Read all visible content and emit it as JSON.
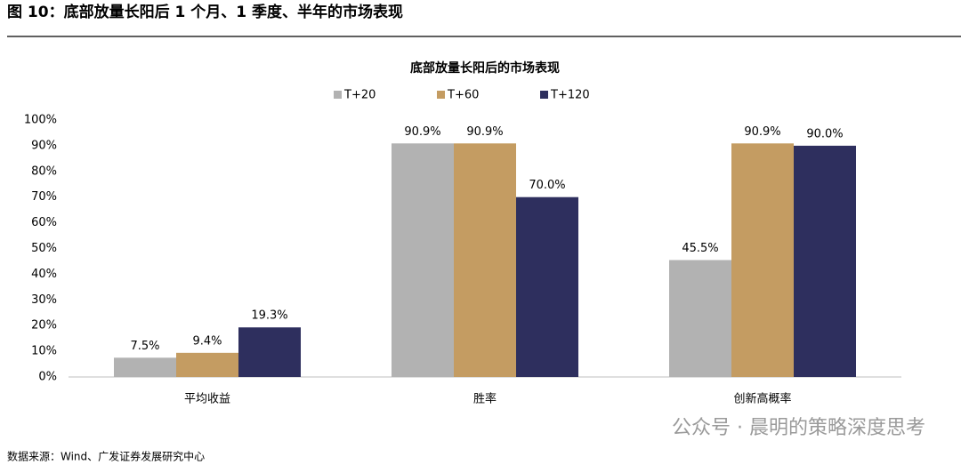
{
  "header": {
    "title": "图 10：底部放量长阳后 1 个月、1 季度、半年的市场表现"
  },
  "chart_data": {
    "type": "bar",
    "title": "底部放量长阳后的市场表现",
    "categories": [
      "平均收益",
      "胜率",
      "创新高概率"
    ],
    "series": [
      {
        "name": "T+20",
        "color": "#b2b2b2",
        "values": [
          7.5,
          90.9,
          45.5
        ],
        "value_labels": [
          "7.5%",
          "90.9%",
          "45.5%"
        ]
      },
      {
        "name": "T+60",
        "color": "#c49c62",
        "values": [
          9.4,
          90.9,
          90.9
        ],
        "value_labels": [
          "9.4%",
          "90.9%",
          "90.9%"
        ]
      },
      {
        "name": "T+120",
        "color": "#2e2f5e",
        "values": [
          19.3,
          70.0,
          90.0
        ],
        "value_labels": [
          "19.3%",
          "70.0%",
          "90.0%"
        ]
      }
    ],
    "ylim": [
      0,
      100
    ],
    "yticks": [
      {
        "value": 0,
        "label": "0%"
      },
      {
        "value": 10,
        "label": "10%"
      },
      {
        "value": 20,
        "label": "20%"
      },
      {
        "value": 30,
        "label": "30%"
      },
      {
        "value": 40,
        "label": "40%"
      },
      {
        "value": 50,
        "label": "50%"
      },
      {
        "value": 60,
        "label": "60%"
      },
      {
        "value": 70,
        "label": "70%"
      },
      {
        "value": 80,
        "label": "80%"
      },
      {
        "value": 90,
        "label": "90%"
      },
      {
        "value": 100,
        "label": "100%"
      }
    ],
    "grid": false,
    "legend": "top"
  },
  "watermark": "公众号 · 晨明的策略深度思考",
  "footer": {
    "source": "数据来源：Wind、广发证券发展研究中心"
  }
}
